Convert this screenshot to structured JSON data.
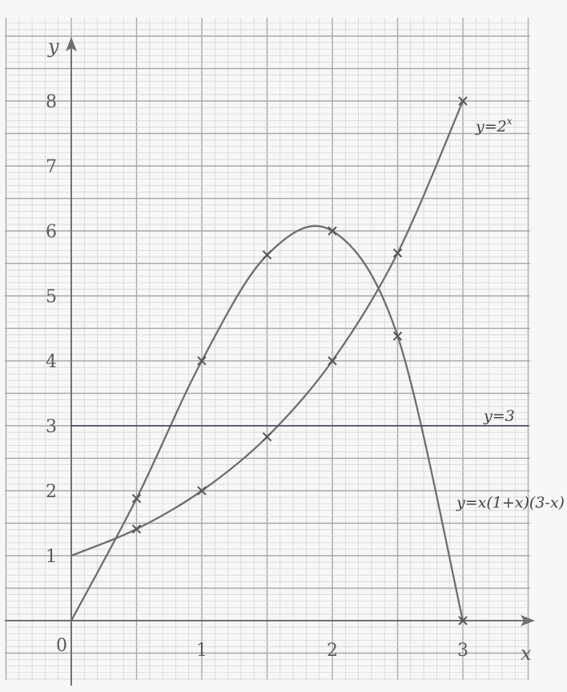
{
  "chart_data": {
    "type": "line",
    "xlabel": "x",
    "ylabel": "y",
    "origin_label": "0",
    "xlim": [
      0,
      3.5
    ],
    "ylim": [
      0,
      8.5
    ],
    "x_ticks": [
      "1",
      "2",
      "3"
    ],
    "y_ticks": [
      "1",
      "2",
      "3",
      "4",
      "5",
      "6",
      "7",
      "8"
    ],
    "grid": true,
    "grid_minor_step": 0.1,
    "grid_major_step": 0.5,
    "series": [
      {
        "name": "y=2^x",
        "label_main": "y=2",
        "label_sup": "x",
        "x": [
          0,
          0.5,
          1,
          1.5,
          2,
          2.5,
          3
        ],
        "y": [
          1,
          1.41,
          2,
          2.83,
          4,
          5.66,
          8
        ]
      },
      {
        "name": "y=x(1+x)(3-x)",
        "label_main": "y=x(1+x)(3-x)",
        "x": [
          0,
          0.5,
          1,
          1.5,
          2,
          2.5,
          3
        ],
        "y": [
          0,
          1.88,
          4,
          5.63,
          6,
          4.38,
          0
        ]
      },
      {
        "name": "y=3",
        "label_main": "y=3",
        "x": [
          0,
          3.5
        ],
        "y": [
          3,
          3
        ]
      }
    ],
    "colors": {
      "curve": "#6e6e6e",
      "line": "#4f5260",
      "axis": "#707070",
      "grid_minor": "#d0d0d0",
      "grid_major": "#a9a9a9"
    }
  }
}
